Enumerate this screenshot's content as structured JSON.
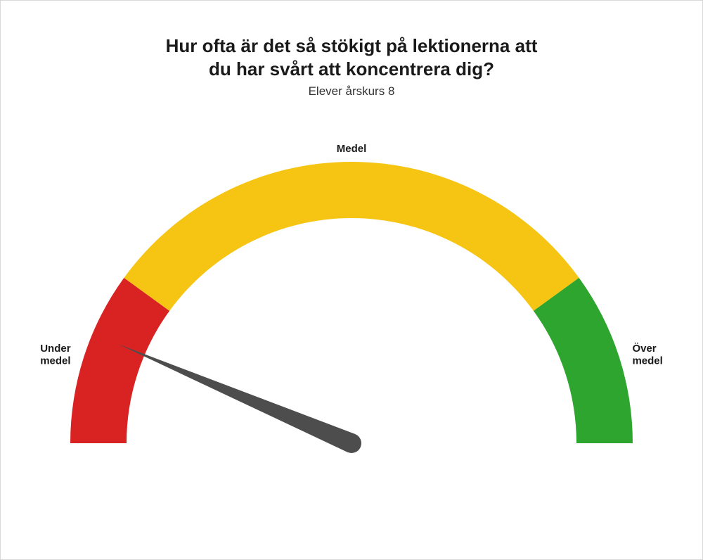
{
  "title_line1": "Hur ofta är det så stökigt på lektionerna att",
  "title_line2": "du har svårt att koncentrera dig?",
  "subtitle": "Elever årskurs 8",
  "gauge": {
    "type": "gauge",
    "background_color": "#ffffff",
    "outer_radius": 400,
    "inner_radius": 320,
    "bands": [
      {
        "start_deg": 180,
        "end_deg": 144,
        "color": "#d92323"
      },
      {
        "start_deg": 144,
        "end_deg": 36,
        "color": "#f6c514"
      },
      {
        "start_deg": 36,
        "end_deg": 0,
        "color": "#2ea52e"
      }
    ],
    "needle": {
      "angle_deg": 157,
      "length": 360,
      "base_width": 28,
      "color": "#4d4d4d"
    },
    "labels": {
      "left": {
        "line1": "Under",
        "line2": "medel"
      },
      "top": {
        "line1": "Medel"
      },
      "right": {
        "line1": "Över",
        "line2": "medel"
      }
    },
    "title_fontsize": 26,
    "subtitle_fontsize": 17,
    "label_fontsize": 15,
    "label_fontweight": 700
  }
}
